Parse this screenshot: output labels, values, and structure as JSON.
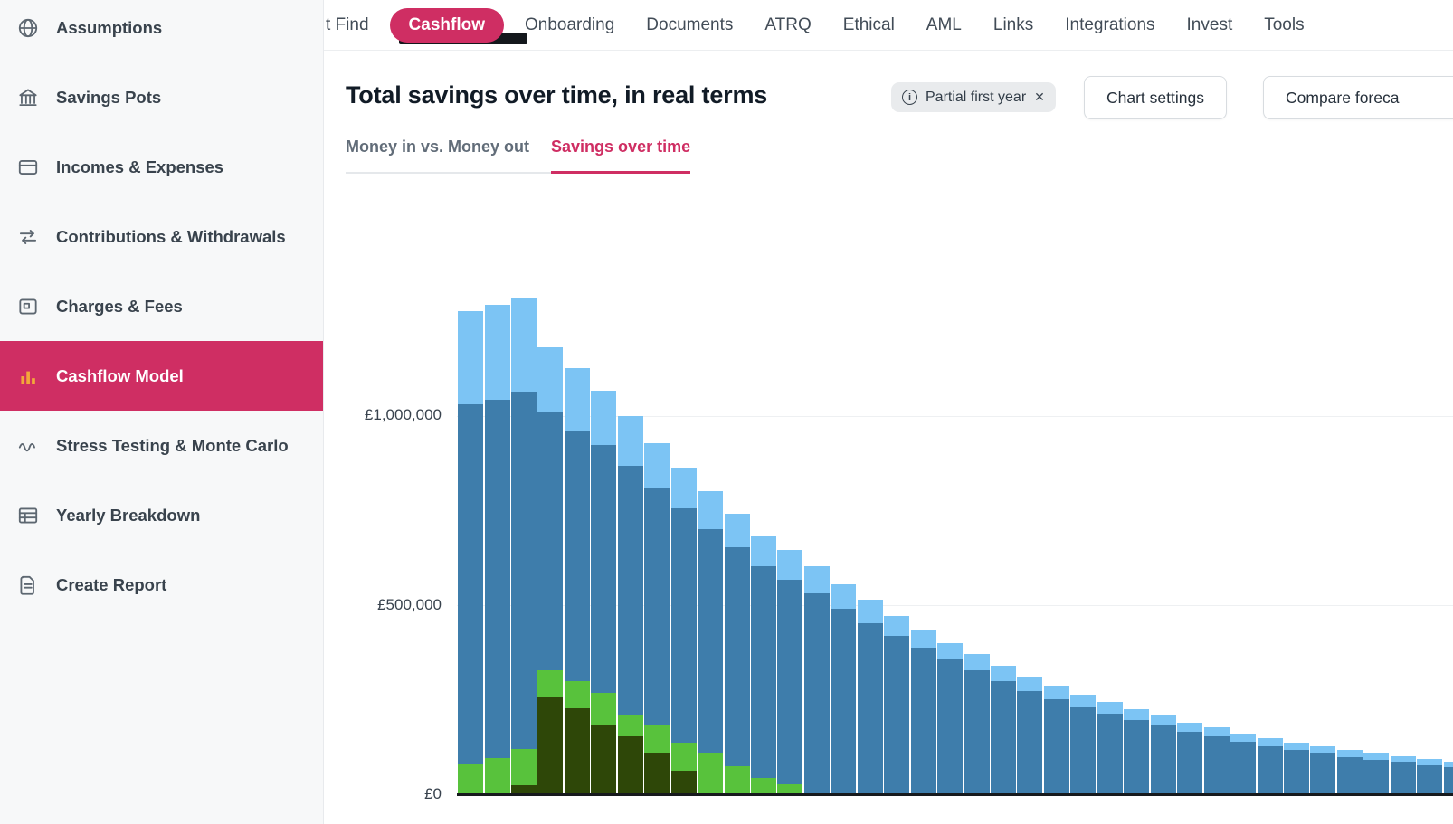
{
  "colors": {
    "accent": "#cf2e63",
    "active_icon": "#f3a73a",
    "bar_dark_blue": "#3e7dab",
    "bar_light_blue": "#7cc4f4",
    "bar_green": "#58c23c",
    "bar_dark_green": "#2e4708"
  },
  "nav": {
    "items": [
      {
        "label": "t Find",
        "active": false
      },
      {
        "label": "Cashflow",
        "active": true
      },
      {
        "label": "Onboarding",
        "active": false
      },
      {
        "label": "Documents",
        "active": false
      },
      {
        "label": "ATRQ",
        "active": false
      },
      {
        "label": "Ethical",
        "active": false
      },
      {
        "label": "AML",
        "active": false
      },
      {
        "label": "Links",
        "active": false
      },
      {
        "label": "Integrations",
        "active": false
      },
      {
        "label": "Invest",
        "active": false
      },
      {
        "label": "Tools",
        "active": false
      }
    ]
  },
  "sidebar": {
    "items": [
      {
        "label": "Assumptions",
        "icon": "globe-icon",
        "active": false
      },
      {
        "label": "Savings Pots",
        "icon": "bank-icon",
        "active": false
      },
      {
        "label": "Incomes & Expenses",
        "icon": "card-icon",
        "active": false
      },
      {
        "label": "Contributions & Withdrawals",
        "icon": "transfer-arrows-icon",
        "active": false
      },
      {
        "label": "Charges & Fees",
        "icon": "fees-card-icon",
        "active": false
      },
      {
        "label": "Cashflow Model",
        "icon": "bar-chart-icon",
        "active": true
      },
      {
        "label": "Stress Testing & Monte Carlo",
        "icon": "trend-wave-icon",
        "active": false
      },
      {
        "label": "Yearly Breakdown",
        "icon": "table-icon",
        "active": false
      },
      {
        "label": "Create Report",
        "icon": "report-document-icon",
        "active": false
      }
    ]
  },
  "page": {
    "title": "Total savings over time, in real terms",
    "badge": {
      "label": "Partial first year"
    },
    "buttons": {
      "chart_settings": "Chart settings",
      "compare": "Compare foreca"
    },
    "tabs": [
      {
        "label": "Money in vs. Money out",
        "active": false
      },
      {
        "label": "Savings over time",
        "active": true
      }
    ]
  },
  "chart_data": {
    "type": "bar",
    "stacked": true,
    "title": "Total savings over time, in real terms",
    "xlabel": "",
    "ylabel": "",
    "ylim": [
      0,
      1350000
    ],
    "grid": true,
    "y_ticks": [
      {
        "label": "£0",
        "value": 0
      },
      {
        "label": "£500,000",
        "value": 500000
      },
      {
        "label": "£1,000,000",
        "value": 1000000
      }
    ],
    "series": [
      {
        "name": "dark-green",
        "color": "#2e4708",
        "values": [
          0,
          0,
          26000,
          257000,
          228000,
          185000,
          156000,
          113000,
          65000,
          0,
          0,
          0,
          0,
          0,
          0,
          0,
          0,
          0,
          0,
          0,
          0,
          0,
          0,
          0,
          0,
          0,
          0,
          0,
          0,
          0,
          0,
          0,
          0,
          0,
          0,
          0,
          0,
          0
        ]
      },
      {
        "name": "green",
        "color": "#58c23c",
        "values": [
          81000,
          98000,
          96000,
          72000,
          72000,
          84000,
          53000,
          72000,
          72000,
          113000,
          77000,
          46000,
          29000,
          0,
          0,
          0,
          0,
          0,
          0,
          0,
          0,
          0,
          0,
          0,
          0,
          0,
          0,
          0,
          0,
          0,
          0,
          0,
          0,
          0,
          0,
          0,
          0,
          0
        ]
      },
      {
        "name": "dark-blue",
        "color": "#3e7dab",
        "values": [
          950000,
          945000,
          943000,
          683000,
          659000,
          655000,
          660000,
          624000,
          619000,
          588000,
          576000,
          558000,
          540000,
          533000,
          492000,
          454000,
          420000,
          389000,
          358000,
          329000,
          300000,
          274000,
          252000,
          232000,
          214000,
          197000,
          183000,
          166000,
          154000,
          141000,
          129000,
          120000,
          111000,
          101000,
          93000,
          86000,
          79000,
          75000
        ]
      },
      {
        "name": "light-blue",
        "color": "#7cc4f4",
        "values": [
          247000,
          250000,
          247000,
          170000,
          168000,
          142000,
          132000,
          120000,
          108000,
          101000,
          89000,
          79000,
          79000,
          72000,
          65000,
          62000,
          53000,
          48000,
          43000,
          43000,
          41000,
          36000,
          36000,
          34000,
          31000,
          29000,
          26000,
          26000,
          24000,
          22000,
          22000,
          19000,
          19000,
          19000,
          17000,
          17000,
          17000,
          14000
        ]
      }
    ]
  }
}
